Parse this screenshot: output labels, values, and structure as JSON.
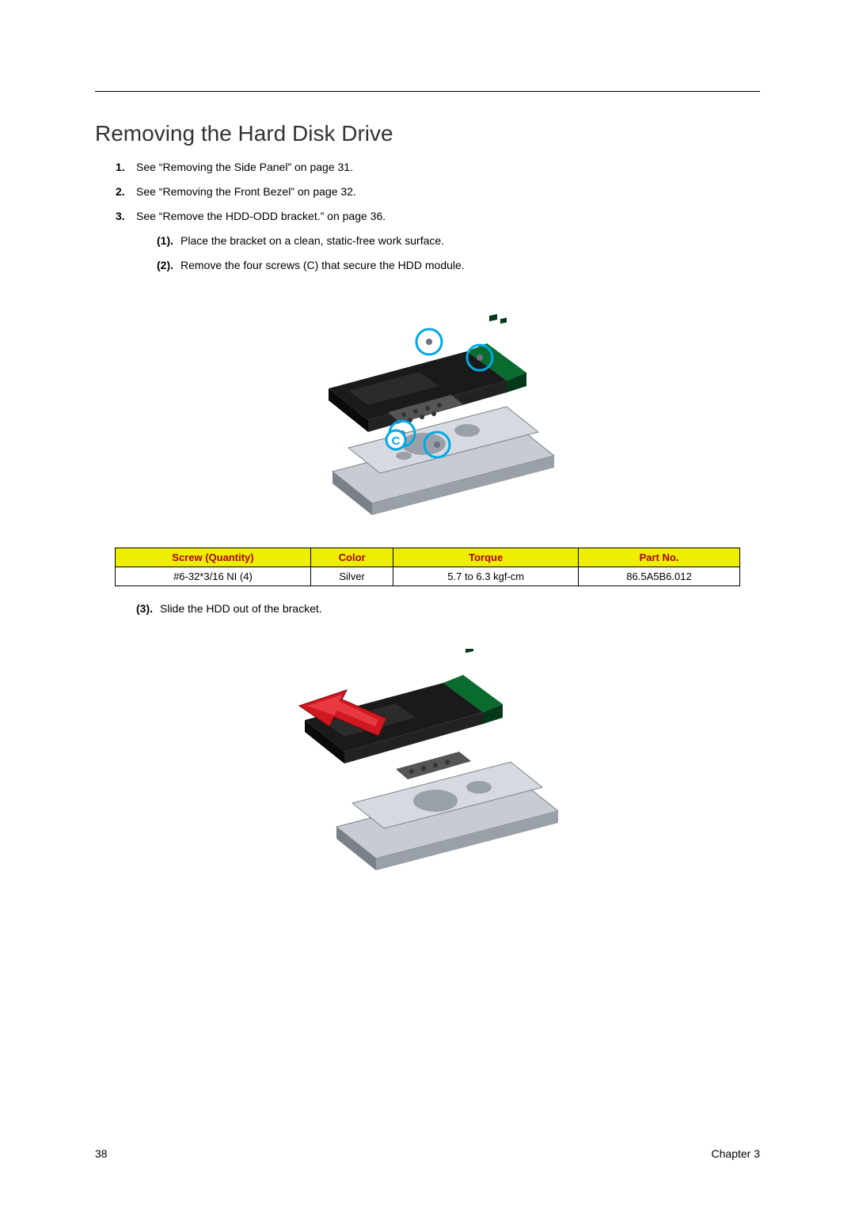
{
  "page": {
    "title": "Removing the Hard Disk Drive",
    "page_number": "38",
    "chapter_label": "Chapter 3"
  },
  "steps": {
    "s1": {
      "num": "1.",
      "text": "See “Removing the Side Panel” on page 31."
    },
    "s2": {
      "num": "2.",
      "text": "See “Removing the Front Bezel” on page 32."
    },
    "s3": {
      "num": "3.",
      "text": "See “Remove the HDD-ODD bracket.” on page 36."
    },
    "s3_1": {
      "num": "(1).",
      "text": "Place the bracket on a clean, static-free work surface."
    },
    "s3_2": {
      "num": "(2).",
      "text": "Remove the four screws (C) that secure the HDD module."
    },
    "s3_3": {
      "num": "(3).",
      "text": "Slide the HDD out of the bracket."
    }
  },
  "screw_table": {
    "headers": {
      "screw_qty": "Screw (Quantity)",
      "color": "Color",
      "torque": "Torque",
      "part_no": "Part No."
    },
    "row": {
      "screw_qty": "#6-32*3/16 NI (4)",
      "color": "Silver",
      "torque": "5.7 to 6.3 kgf-cm",
      "part_no": "86.5A5B6.012"
    },
    "header_bg": "#eeee00",
    "header_color": "#b00000",
    "border_color": "#000000"
  },
  "figure1": {
    "marker_color": "#00a8e8",
    "marker_label": "C",
    "hdd_top_color": "#1a1a1a",
    "pcb_color": "#0a6b2f",
    "pcb_dark": "#053818",
    "bracket_color": "#c8ccd2",
    "bracket_shadow": "#7a8088",
    "screw_color": "#6b7280"
  },
  "figure2": {
    "arrow_color": "#d01820",
    "hdd_top_color": "#1a1a1a",
    "pcb_color": "#0a6b2f",
    "pcb_dark": "#053818",
    "bracket_color": "#c8ccd2",
    "bracket_shadow": "#7a8088"
  }
}
